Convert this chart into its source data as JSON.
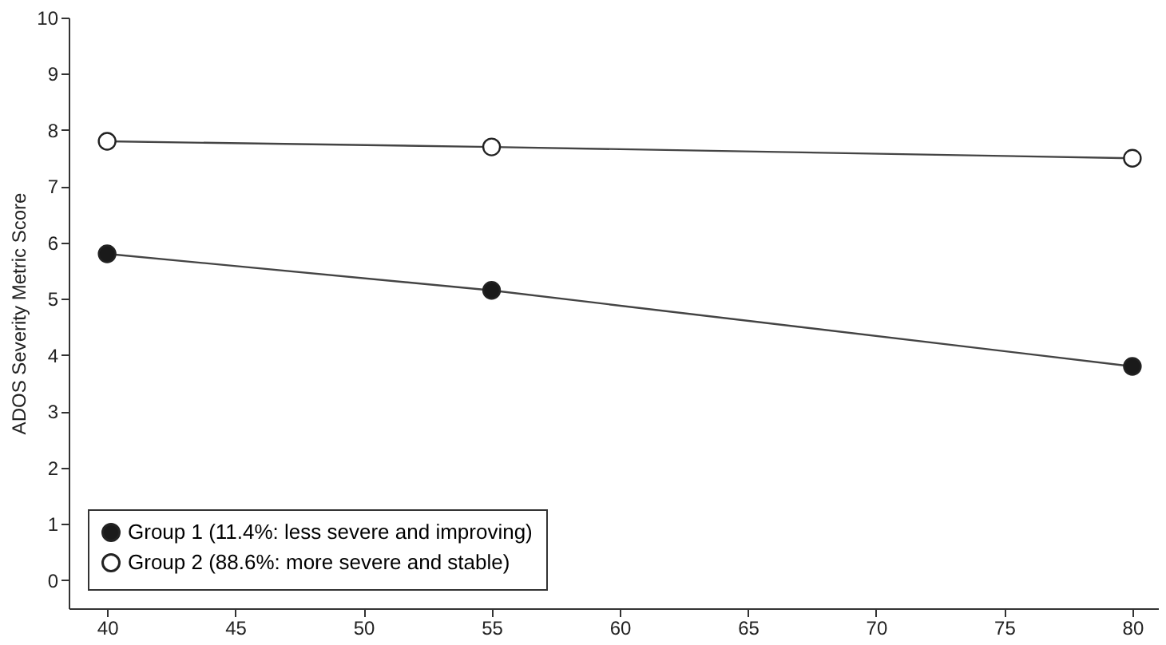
{
  "chart_data": {
    "type": "line",
    "ylabel": "ADOS Severity Metric Score",
    "x": [
      40,
      55,
      80
    ],
    "series": [
      {
        "name": "Group 1 (11.4%: less severe and improving)",
        "color": "#1a1a1a",
        "values": [
          5.8,
          5.15,
          3.8
        ]
      },
      {
        "name": "Group 2 (88.6%: more severe and stable)",
        "color": "#ffffff",
        "values": [
          7.8,
          7.7,
          7.5
        ]
      }
    ],
    "xlim": [
      38.5,
      81
    ],
    "xticks": [
      40,
      45,
      50,
      55,
      60,
      65,
      70,
      75,
      80
    ],
    "ylim": [
      -0.5,
      10
    ],
    "yticks": [
      0,
      1,
      2,
      3,
      4,
      5,
      6,
      7,
      8,
      9,
      10
    ],
    "grid": false,
    "legend": "bottom left",
    "marker": "circle",
    "line_style": "solid"
  }
}
